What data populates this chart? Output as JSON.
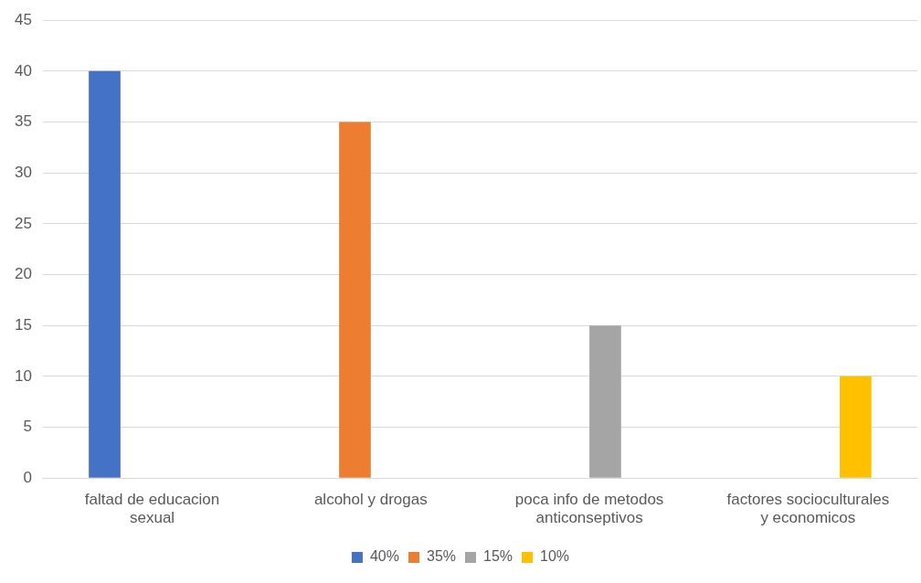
{
  "chart_data": {
    "type": "bar",
    "categories": [
      "faltad de educacion sexual",
      "alcohol y drogas",
      "poca info de metodos anticonseptivos",
      "factores socioculturales y economicos"
    ],
    "series": [
      {
        "name": "40%",
        "color": "#4472c4",
        "values": [
          40,
          null,
          null,
          null
        ]
      },
      {
        "name": "35%",
        "color": "#ed7d31",
        "values": [
          null,
          35,
          null,
          null
        ]
      },
      {
        "name": "15%",
        "color": "#a5a5a5",
        "values": [
          null,
          null,
          15,
          null
        ]
      },
      {
        "name": "10%",
        "color": "#ffc000",
        "values": [
          null,
          null,
          null,
          10
        ]
      }
    ],
    "ylim": [
      0,
      45
    ],
    "yticks": [
      0,
      5,
      10,
      15,
      20,
      25,
      30,
      35,
      40,
      45
    ],
    "grid": "y",
    "legend": "bottom"
  }
}
